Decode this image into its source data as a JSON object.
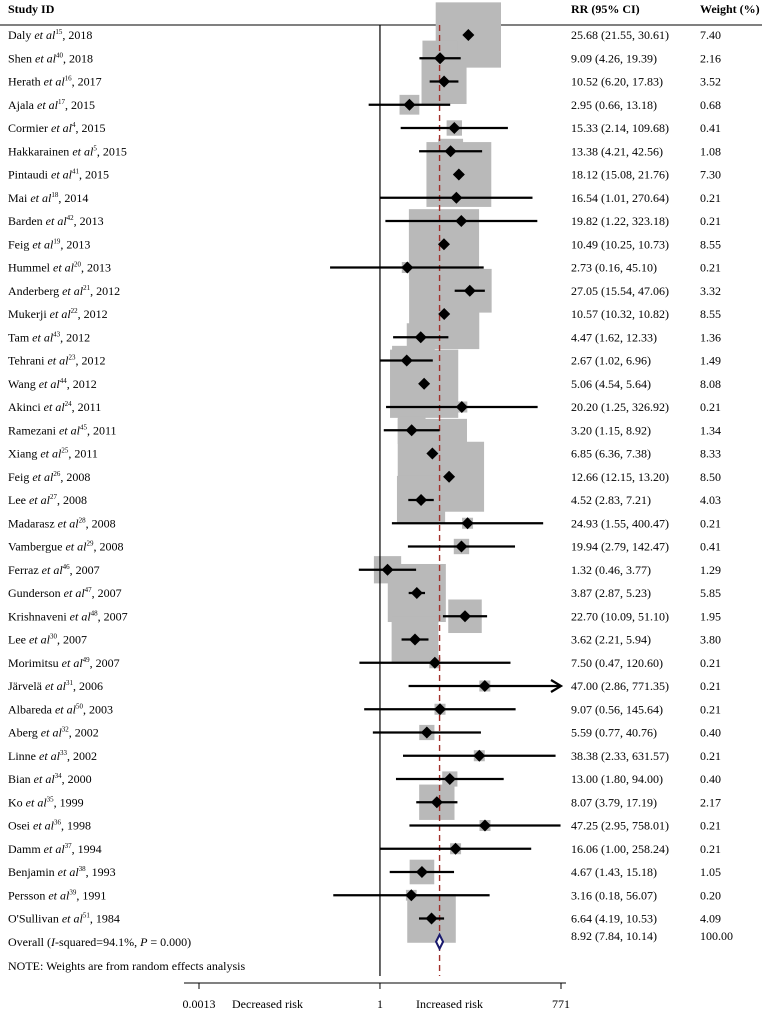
{
  "chart_data": {
    "type": "forest",
    "headers": {
      "study": "Study ID",
      "rr": "RR (95% CI)",
      "weight": "Weight (%)"
    },
    "studies": [
      {
        "author": "Daly",
        "ref": "15",
        "year": "2018",
        "rr": 25.68,
        "lo": 21.55,
        "hi": 30.61,
        "rr_text": "25.68 (21.55, 30.61)",
        "weight": "7.40"
      },
      {
        "author": "Shen",
        "ref": "40",
        "year": "2018",
        "rr": 9.09,
        "lo": 4.26,
        "hi": 19.39,
        "rr_text": "9.09 (4.26, 19.39)",
        "weight": "2.16"
      },
      {
        "author": "Herath",
        "ref": "16",
        "year": "2017",
        "rr": 10.52,
        "lo": 6.2,
        "hi": 17.83,
        "rr_text": "10.52 (6.20, 17.83)",
        "weight": "3.52"
      },
      {
        "author": "Ajala",
        "ref": "17",
        "year": "2015",
        "rr": 2.95,
        "lo": 0.66,
        "hi": 13.18,
        "rr_text": "2.95 (0.66, 13.18)",
        "weight": "0.68"
      },
      {
        "author": "Cormier",
        "ref": "4",
        "year": "2015",
        "rr": 15.33,
        "lo": 2.14,
        "hi": 109.68,
        "rr_text": "15.33 (2.14, 109.68)",
        "weight": "0.41"
      },
      {
        "author": "Hakkarainen",
        "ref": "5",
        "year": "2015",
        "rr": 13.38,
        "lo": 4.21,
        "hi": 42.56,
        "rr_text": "13.38 (4.21, 42.56)",
        "weight": "1.08"
      },
      {
        "author": "Pintaudi",
        "ref": "41",
        "year": "2015",
        "rr": 18.12,
        "lo": 15.08,
        "hi": 21.76,
        "rr_text": "18.12 (15.08, 21.76)",
        "weight": "7.30"
      },
      {
        "author": "Mai",
        "ref": "18",
        "year": "2014",
        "rr": 16.54,
        "lo": 1.01,
        "hi": 270.64,
        "rr_text": "16.54 (1.01, 270.64)",
        "weight": "0.21"
      },
      {
        "author": "Barden",
        "ref": "42",
        "year": "2013",
        "rr": 19.82,
        "lo": 1.22,
        "hi": 323.18,
        "rr_text": "19.82 (1.22, 323.18)",
        "weight": "0.21"
      },
      {
        "author": "Feig",
        "ref": "19",
        "year": "2013",
        "rr": 10.49,
        "lo": 10.25,
        "hi": 10.73,
        "rr_text": "10.49 (10.25, 10.73)",
        "weight": "8.55"
      },
      {
        "author": "Hummel",
        "ref": "20",
        "year": "2013",
        "rr": 2.73,
        "lo": 0.16,
        "hi": 45.1,
        "rr_text": "2.73 (0.16, 45.10)",
        "weight": "0.21"
      },
      {
        "author": "Anderberg",
        "ref": "21",
        "year": "2012",
        "rr": 27.05,
        "lo": 15.54,
        "hi": 47.06,
        "rr_text": "27.05 (15.54, 47.06)",
        "weight": "3.32"
      },
      {
        "author": "Mukerji",
        "ref": "22",
        "year": "2012",
        "rr": 10.57,
        "lo": 10.32,
        "hi": 10.82,
        "rr_text": "10.57 (10.32, 10.82)",
        "weight": "8.55"
      },
      {
        "author": "Tam",
        "ref": "43",
        "year": "2012",
        "rr": 4.47,
        "lo": 1.62,
        "hi": 12.33,
        "rr_text": "4.47 (1.62, 12.33)",
        "weight": "1.36"
      },
      {
        "author": "Tehrani",
        "ref": "23",
        "year": "2012",
        "rr": 2.67,
        "lo": 1.02,
        "hi": 6.96,
        "rr_text": "2.67 (1.02, 6.96)",
        "weight": "1.49"
      },
      {
        "author": "Wang",
        "ref": "44",
        "year": "2012",
        "rr": 5.06,
        "lo": 4.54,
        "hi": 5.64,
        "rr_text": "5.06 (4.54, 5.64)",
        "weight": "8.08"
      },
      {
        "author": "Akinci",
        "ref": "24",
        "year": "2011",
        "rr": 20.2,
        "lo": 1.25,
        "hi": 326.92,
        "rr_text": "20.20 (1.25, 326.92)",
        "weight": "0.21"
      },
      {
        "author": "Ramezani",
        "ref": "45",
        "year": "2011",
        "rr": 3.2,
        "lo": 1.15,
        "hi": 8.92,
        "rr_text": "3.20 (1.15, 8.92)",
        "weight": "1.34"
      },
      {
        "author": "Xiang",
        "ref": "25",
        "year": "2011",
        "rr": 6.85,
        "lo": 6.36,
        "hi": 7.38,
        "rr_text": "6.85 (6.36, 7.38)",
        "weight": "8.33"
      },
      {
        "author": "Feig",
        "ref": "26",
        "year": "2008",
        "rr": 12.66,
        "lo": 12.15,
        "hi": 13.2,
        "rr_text": "12.66 (12.15, 13.20)",
        "weight": "8.50"
      },
      {
        "author": "Lee",
        "ref": "27",
        "year": "2008",
        "rr": 4.52,
        "lo": 2.83,
        "hi": 7.21,
        "rr_text": "4.52 (2.83, 7.21)",
        "weight": "4.03"
      },
      {
        "author": "Madarasz",
        "ref": "28",
        "year": "2008",
        "rr": 24.93,
        "lo": 1.55,
        "hi": 400.47,
        "rr_text": "24.93 (1.55, 400.47)",
        "weight": "0.21"
      },
      {
        "author": "Vambergue",
        "ref": "29",
        "year": "2008",
        "rr": 19.94,
        "lo": 2.79,
        "hi": 142.47,
        "rr_text": "19.94 (2.79, 142.47)",
        "weight": "0.41"
      },
      {
        "author": "Ferraz",
        "ref": "46",
        "year": "2007",
        "rr": 1.32,
        "lo": 0.46,
        "hi": 3.77,
        "rr_text": "1.32 (0.46, 3.77)",
        "weight": "1.29"
      },
      {
        "author": "Gunderson",
        "ref": "47",
        "year": "2007",
        "rr": 3.87,
        "lo": 2.87,
        "hi": 5.23,
        "rr_text": "3.87 (2.87, 5.23)",
        "weight": "5.85"
      },
      {
        "author": "Krishnaveni",
        "ref": "48",
        "year": "2007",
        "rr": 22.7,
        "lo": 10.09,
        "hi": 51.1,
        "rr_text": "22.70 (10.09, 51.10)",
        "weight": "1.95"
      },
      {
        "author": "Lee",
        "ref": "30",
        "year": "2007",
        "rr": 3.62,
        "lo": 2.21,
        "hi": 5.94,
        "rr_text": "3.62 (2.21, 5.94)",
        "weight": "3.80"
      },
      {
        "author": "Morimitsu",
        "ref": "49",
        "year": "2007",
        "rr": 7.5,
        "lo": 0.47,
        "hi": 120.6,
        "rr_text": "7.50 (0.47, 120.60)",
        "weight": "0.21"
      },
      {
        "author": "Järvelä",
        "ref": "31",
        "year": "2006",
        "rr": 47.0,
        "lo": 2.86,
        "hi": 771.35,
        "rr_text": "47.00 (2.86, 771.35)",
        "weight": "0.21",
        "arrow": true
      },
      {
        "author": "Albareda",
        "ref": "50",
        "year": "2003",
        "rr": 9.07,
        "lo": 0.56,
        "hi": 145.64,
        "rr_text": "9.07 (0.56, 145.64)",
        "weight": "0.21"
      },
      {
        "author": "Aberg",
        "ref": "32",
        "year": "2002",
        "rr": 5.59,
        "lo": 0.77,
        "hi": 40.76,
        "rr_text": "5.59 (0.77, 40.76)",
        "weight": "0.40"
      },
      {
        "author": "Linne",
        "ref": "33",
        "year": "2002",
        "rr": 38.38,
        "lo": 2.33,
        "hi": 631.57,
        "rr_text": "38.38 (2.33, 631.57)",
        "weight": "0.21"
      },
      {
        "author": "Bian",
        "ref": "34",
        "year": "2000",
        "rr": 13.0,
        "lo": 1.8,
        "hi": 94.0,
        "rr_text": "13.00 (1.80, 94.00)",
        "weight": "0.40"
      },
      {
        "author": "Ko",
        "ref": "35",
        "year": "1999",
        "rr": 8.07,
        "lo": 3.79,
        "hi": 17.19,
        "rr_text": "8.07 (3.79, 17.19)",
        "weight": "2.17"
      },
      {
        "author": "Osei",
        "ref": "36",
        "year": "1998",
        "rr": 47.25,
        "lo": 2.95,
        "hi": 758.01,
        "rr_text": "47.25 (2.95, 758.01)",
        "weight": "0.21"
      },
      {
        "author": "Damm",
        "ref": "37",
        "year": "1994",
        "rr": 16.06,
        "lo": 1.0,
        "hi": 258.24,
        "rr_text": "16.06 (1.00, 258.24)",
        "weight": "0.21"
      },
      {
        "author": "Benjamin",
        "ref": "38",
        "year": "1993",
        "rr": 4.67,
        "lo": 1.43,
        "hi": 15.18,
        "rr_text": "4.67 (1.43, 15.18)",
        "weight": "1.05"
      },
      {
        "author": "Persson",
        "ref": "39",
        "year": "1991",
        "rr": 3.16,
        "lo": 0.18,
        "hi": 56.07,
        "rr_text": "3.16 (0.18, 56.07)",
        "weight": "0.20"
      },
      {
        "author": "O'Sullivan",
        "ref": "51",
        "year": "1984",
        "rr": 6.64,
        "lo": 4.19,
        "hi": 10.53,
        "rr_text": "6.64 (4.19, 10.53)",
        "weight": "4.09"
      }
    ],
    "etal": "et al",
    "overall": {
      "label_prefix": "Overall (",
      "i_label": "I",
      "label_mid": "-squared=94.1%, ",
      "p_label": "P",
      "label_suffix": " = 0.000)",
      "rr": 8.92,
      "lo": 7.84,
      "hi": 10.14,
      "rr_text": "8.92 (7.84, 10.14)",
      "weight": "100.00"
    },
    "note": "NOTE: Weights are from random effects analysis",
    "axis": {
      "scale": "log",
      "range": [
        0.0013,
        771
      ],
      "ticks": [
        {
          "value": 0.0013,
          "label": "0.0013"
        },
        {
          "value": 1,
          "label": "1"
        },
        {
          "value": 771,
          "label": "771"
        }
      ],
      "left_label": "Decreased risk",
      "right_label": "Increased risk"
    },
    "colors": {
      "box": "#b9b9b9",
      "marker": "#000000",
      "overall_diamond": "#1a1a6e",
      "overall_line": "#a0302a",
      "axis": "#000000"
    }
  }
}
